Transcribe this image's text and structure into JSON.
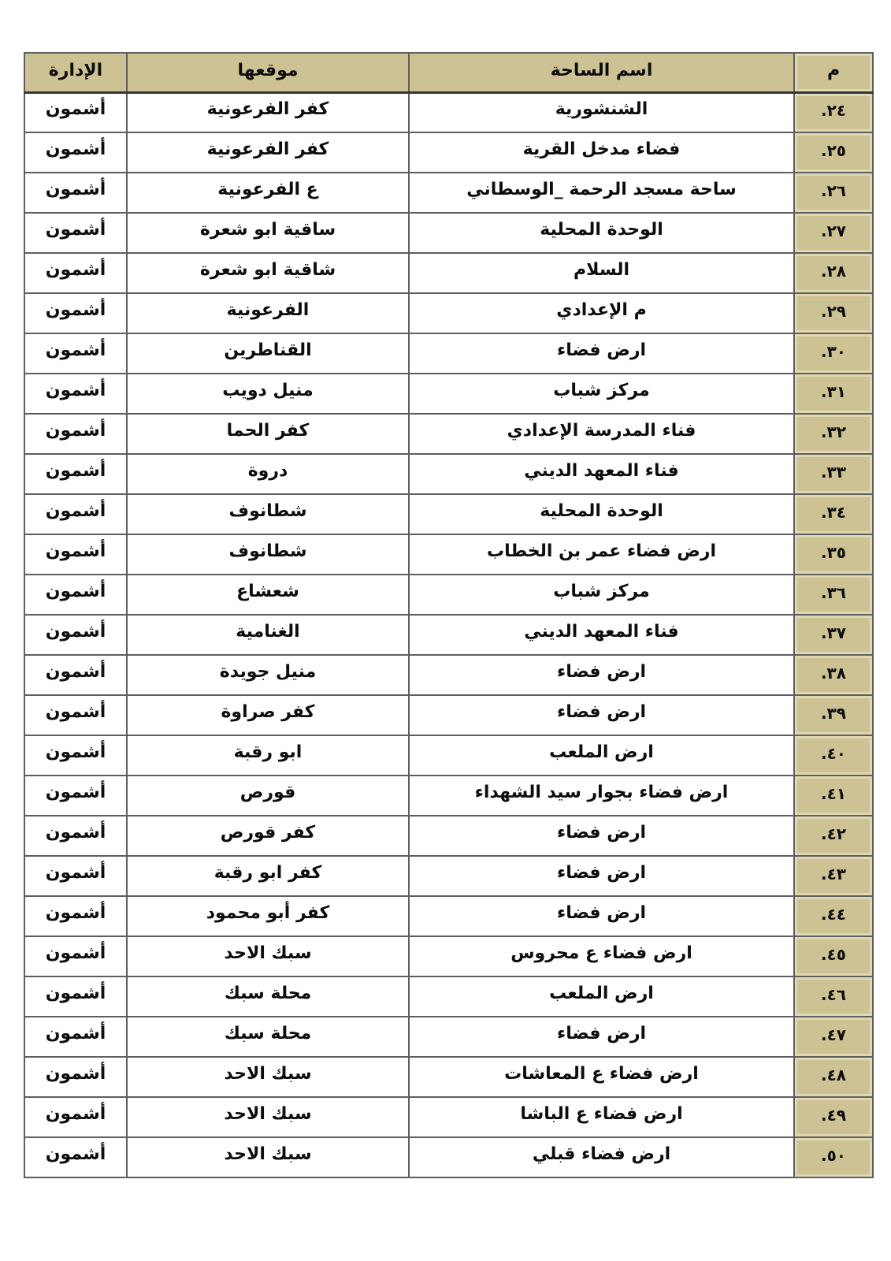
{
  "colors": {
    "header_bg": "#cdc294",
    "number_col_bg": "#cdc294",
    "number_col_bevel": "#e0d8b0",
    "grid_border": "#5e5e5e",
    "text": "#0d0d0d",
    "page_bg": "#ffffff"
  },
  "table": {
    "headers": {
      "num": "م",
      "name": "اسم الساحة",
      "location": "موقعها",
      "admin": "الإدارة"
    },
    "rows": [
      {
        "num": "٢٤.",
        "name": "الشنشورية",
        "location": "كفر الفرعونية",
        "admin": "أشمون"
      },
      {
        "num": "٢٥.",
        "name": "فضاء مدخل القرية",
        "location": "كفر الفرعونية",
        "admin": "أشمون"
      },
      {
        "num": "٢٦.",
        "name": "ساحة مسجد الرحمة _الوسطاني",
        "location": "ع الفرعونية",
        "admin": "أشمون"
      },
      {
        "num": "٢٧.",
        "name": "الوحدة المحلية",
        "location": "ساقية ابو شعرة",
        "admin": "أشمون"
      },
      {
        "num": "٢٨.",
        "name": "السلام",
        "location": "شاقية ابو شعرة",
        "admin": "أشمون"
      },
      {
        "num": "٢٩.",
        "name": "م الإعدادي",
        "location": "الفرعونية",
        "admin": "أشمون"
      },
      {
        "num": "٣٠.",
        "name": "ارض فضاء",
        "location": "القناطرين",
        "admin": "أشمون"
      },
      {
        "num": "٣١.",
        "name": "مركز شباب",
        "location": "منيل دويب",
        "admin": "أشمون"
      },
      {
        "num": "٣٢.",
        "name": "فناء المدرسة الإعدادي",
        "location": "كفر الحما",
        "admin": "أشمون"
      },
      {
        "num": "٣٣.",
        "name": "فناء المعهد الديني",
        "location": "دروة",
        "admin": "أشمون"
      },
      {
        "num": "٣٤.",
        "name": "الوحدة المحلية",
        "location": "شطانوف",
        "admin": "أشمون"
      },
      {
        "num": "٣٥.",
        "name": "ارض فضاء عمر بن الخطاب",
        "location": "شطانوف",
        "admin": "أشمون"
      },
      {
        "num": "٣٦.",
        "name": "مركز شباب",
        "location": "شعشاع",
        "admin": "أشمون"
      },
      {
        "num": "٣٧.",
        "name": "فناء المعهد الديني",
        "location": "الغنامية",
        "admin": "أشمون"
      },
      {
        "num": "٣٨.",
        "name": "ارض فضاء",
        "location": "منيل جويدة",
        "admin": "أشمون"
      },
      {
        "num": "٣٩.",
        "name": "ارض فضاء",
        "location": "كفر صراوة",
        "admin": "أشمون"
      },
      {
        "num": "٤٠.",
        "name": "ارض الملعب",
        "location": "ابو رقبة",
        "admin": "أشمون"
      },
      {
        "num": "٤١.",
        "name": "ارض فضاء بجوار سيد الشهداء",
        "location": "قورص",
        "admin": "أشمون"
      },
      {
        "num": "٤٢.",
        "name": "ارض فضاء",
        "location": "كفر قورص",
        "admin": "أشمون"
      },
      {
        "num": "٤٣.",
        "name": "ارض فضاء",
        "location": "كفر ابو رقبة",
        "admin": "أشمون"
      },
      {
        "num": "٤٤.",
        "name": "ارض فضاء",
        "location": "كفر أبو محمود",
        "admin": "أشمون"
      },
      {
        "num": "٤٥.",
        "name": "ارض فضاء ع محروس",
        "location": "سبك الاحد",
        "admin": "أشمون"
      },
      {
        "num": "٤٦.",
        "name": "ارض الملعب",
        "location": "محلة سبك",
        "admin": "أشمون"
      },
      {
        "num": "٤٧.",
        "name": "ارض فضاء",
        "location": "محلة سبك",
        "admin": "أشمون"
      },
      {
        "num": "٤٨.",
        "name": "ارض فضاء ع المعاشات",
        "location": "سبك الاحد",
        "admin": "أشمون"
      },
      {
        "num": "٤٩.",
        "name": "ارض فضاء ع الباشا",
        "location": "سبك الاحد",
        "admin": "أشمون"
      },
      {
        "num": "٥٠.",
        "name": "ارض فضاء قبلي",
        "location": "سبك الاحد",
        "admin": "أشمون"
      }
    ]
  }
}
